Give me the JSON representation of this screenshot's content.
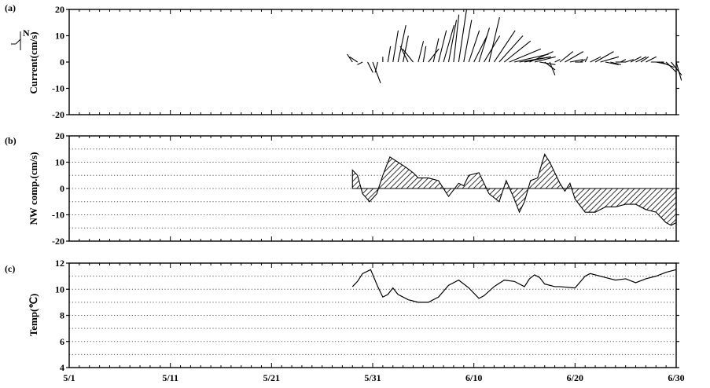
{
  "chart_data": [
    {
      "panel_label": "(a)",
      "type": "line",
      "ylabel": "Current(cm/s)",
      "north_label": "N",
      "ylim": [
        -20,
        20
      ],
      "yticks": [
        "-20",
        "-10",
        "0",
        "10",
        "20"
      ],
      "xticks": [
        "5/1",
        "5/11",
        "5/21",
        "5/31",
        "6/10",
        "6/20",
        "6/30"
      ],
      "grid": false,
      "series": [
        {
          "day": [
            28.0,
            28.5,
            29.0,
            29.5,
            30.0,
            30.5,
            31.0,
            31.5,
            32.0,
            32.5,
            33.0,
            33.5,
            34.0,
            34.5,
            35.0,
            35.5,
            36.0,
            36.5,
            37.0,
            37.5,
            38.0,
            38.5,
            39.0,
            39.5,
            40.0,
            40.5,
            41.0,
            41.5,
            42.0,
            42.5,
            43.0,
            43.5,
            44.0,
            44.5,
            45.0,
            45.5,
            46.0,
            46.5,
            47.0,
            47.5,
            48.0,
            48.5,
            49.0,
            49.5,
            50.0,
            50.5,
            51.0,
            51.5,
            52.0,
            52.5,
            53.0,
            53.5,
            54.0,
            54.5,
            55.0,
            55.5,
            56.0,
            56.5,
            57.0,
            57.5,
            58.0,
            58.5,
            59.0,
            59.5,
            60.0
          ],
          "east": [
            -2,
            -3,
            -2,
            2,
            3,
            -1,
            0,
            1,
            2,
            3,
            2,
            -3,
            -4,
            2,
            1,
            4,
            2,
            3,
            4,
            3,
            2,
            3,
            3,
            4,
            5,
            4,
            6,
            4,
            8,
            9,
            10,
            12,
            13,
            12,
            10,
            9,
            8,
            6,
            4,
            2,
            2,
            5,
            7,
            5,
            3,
            2,
            1,
            4,
            7,
            7,
            5,
            4,
            4,
            2,
            3,
            4,
            4,
            3,
            4,
            5,
            5,
            5,
            4,
            4,
            2
          ],
          "north": [
            3,
            2,
            -1,
            -4,
            -8,
            -4,
            2,
            6,
            12,
            14,
            10,
            6,
            5,
            8,
            6,
            5,
            9,
            12,
            14,
            16,
            18,
            20,
            16,
            12,
            10,
            13,
            10,
            17,
            12,
            10,
            8,
            5,
            3,
            2,
            2,
            4,
            2,
            -1,
            -3,
            -5,
            1,
            4,
            4,
            1,
            0,
            1,
            2,
            2,
            4,
            2,
            -1,
            -1,
            0,
            1,
            1,
            2,
            2,
            2,
            2,
            0,
            -1,
            -2,
            -4,
            -5,
            -7
          ]
        }
      ]
    },
    {
      "panel_label": "(b)",
      "type": "area",
      "ylabel": "NW comp.(cm/s)",
      "ylim": [
        -20,
        20
      ],
      "yticks": [
        "-20",
        "-10",
        "0",
        "10",
        "20"
      ],
      "xticks": [
        "5/1",
        "5/11",
        "5/21",
        "5/31",
        "6/10",
        "6/20",
        "6/30"
      ],
      "grid": true,
      "series": [
        {
          "x": [
            28.0,
            28.5,
            29.0,
            29.7,
            30.4,
            31.0,
            31.7,
            32.5,
            33.3,
            34.0,
            34.5,
            35.5,
            36.5,
            37.5,
            38.5,
            39.0,
            39.5,
            40.5,
            41.5,
            42.5,
            43.2,
            44.0,
            44.5,
            45.0,
            45.6,
            46.3,
            47.0,
            47.5,
            48.5,
            49.0,
            49.5,
            50.0,
            51.0,
            52.0,
            53.0,
            54.0,
            55.0,
            56.0,
            57.0,
            58.0,
            59.0,
            59.5,
            60.0
          ],
          "y": [
            7,
            5,
            -2,
            -5,
            -2,
            5,
            12,
            10,
            8,
            6,
            4,
            4,
            3,
            -3,
            2,
            1,
            5,
            6,
            -2,
            -5,
            3,
            -4,
            -9,
            -5,
            3,
            4,
            13,
            10,
            2,
            -1,
            2,
            -4,
            -9,
            -9,
            -7,
            -7,
            -6,
            -6,
            -8,
            -9,
            -13,
            -14,
            -13
          ]
        }
      ]
    },
    {
      "panel_label": "(c)",
      "type": "line",
      "ylabel": "Temp(℃)",
      "ylim": [
        4,
        12
      ],
      "yticks": [
        "4",
        "6",
        "8",
        "10",
        "12"
      ],
      "xticks": [
        "5/1",
        "5/11",
        "5/21",
        "5/31",
        "6/10",
        "6/20",
        "6/30"
      ],
      "grid": true,
      "series": [
        {
          "x": [
            28.0,
            28.5,
            29.0,
            29.8,
            30.5,
            31.0,
            31.5,
            32.0,
            32.5,
            33.5,
            34.5,
            35.5,
            36.5,
            37.5,
            38.5,
            39.5,
            40.5,
            41.0,
            42.0,
            43.0,
            44.0,
            45.0,
            45.5,
            46.0,
            46.5,
            47.0,
            47.5,
            48.0,
            48.5,
            50.0,
            51.0,
            51.5,
            53.0,
            54.0,
            55.0,
            56.0,
            57.0,
            58.0,
            59.0,
            60.0
          ],
          "y": [
            10.2,
            10.6,
            11.2,
            11.5,
            10.2,
            9.4,
            9.6,
            10.1,
            9.6,
            9.2,
            9.0,
            9.0,
            9.4,
            10.3,
            10.7,
            10.1,
            9.3,
            9.5,
            10.2,
            10.7,
            10.6,
            10.2,
            10.8,
            11.1,
            10.9,
            10.4,
            10.3,
            10.2,
            10.2,
            10.1,
            11.0,
            11.2,
            10.9,
            10.7,
            10.8,
            10.5,
            10.8,
            11.0,
            11.3,
            11.5
          ]
        }
      ]
    }
  ]
}
